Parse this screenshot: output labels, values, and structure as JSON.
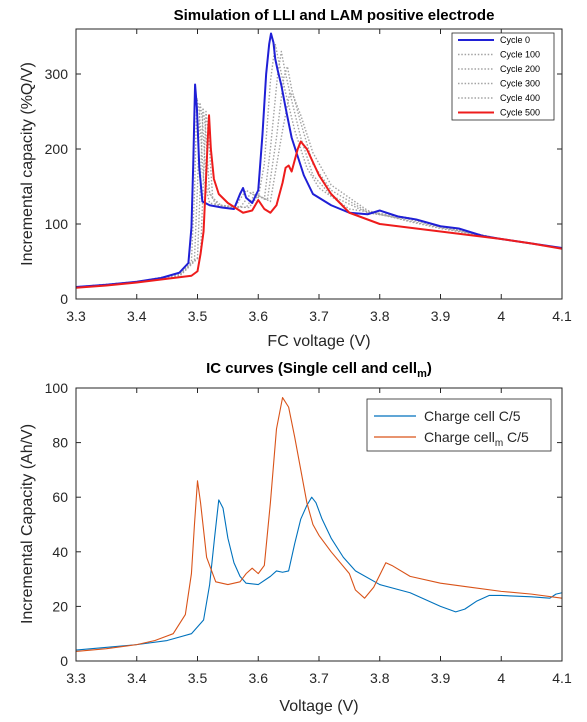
{
  "chart_data": [
    {
      "type": "line",
      "title": "Simulation of LLI and LAM positive electrode",
      "xlabel": "FC voltage (V)",
      "ylabel": "Incremental capacity (%Q/V)",
      "xlim": [
        3.3,
        4.1
      ],
      "ylim": [
        0,
        360
      ],
      "x_ticks": [
        "3.3",
        "3.4",
        "3.5",
        "3.6",
        "3.7",
        "3.8",
        "3.9",
        "4",
        "4.1"
      ],
      "y_ticks": [
        "0",
        "100",
        "200",
        "300"
      ],
      "legend_position": "top-right",
      "series": [
        {
          "name": "Cycle 0",
          "color": "#1f1fd6",
          "style": "solid",
          "points": [
            [
              3.3,
              16
            ],
            [
              3.35,
              19
            ],
            [
              3.4,
              23
            ],
            [
              3.44,
              28
            ],
            [
              3.47,
              35
            ],
            [
              3.485,
              48
            ],
            [
              3.49,
              95
            ],
            [
              3.493,
              180
            ],
            [
              3.496,
              286
            ],
            [
              3.499,
              255
            ],
            [
              3.503,
              175
            ],
            [
              3.508,
              130
            ],
            [
              3.52,
              125
            ],
            [
              3.54,
              122
            ],
            [
              3.56,
              120
            ],
            [
              3.57,
              140
            ],
            [
              3.575,
              148
            ],
            [
              3.58,
              135
            ],
            [
              3.59,
              128
            ],
            [
              3.6,
              145
            ],
            [
              3.607,
              220
            ],
            [
              3.613,
              300
            ],
            [
              3.618,
              340
            ],
            [
              3.621,
              354
            ],
            [
              3.625,
              342
            ],
            [
              3.628,
              320
            ],
            [
              3.632,
              305
            ],
            [
              3.638,
              285
            ],
            [
              3.645,
              255
            ],
            [
              3.655,
              215
            ],
            [
              3.665,
              190
            ],
            [
              3.675,
              165
            ],
            [
              3.69,
              140
            ],
            [
              3.72,
              125
            ],
            [
              3.75,
              115
            ],
            [
              3.78,
              113
            ],
            [
              3.8,
              118
            ],
            [
              3.83,
              110
            ],
            [
              3.86,
              106
            ],
            [
              3.9,
              97
            ],
            [
              3.93,
              94
            ],
            [
              3.97,
              84
            ],
            [
              4.0,
              80
            ],
            [
              4.05,
              74
            ],
            [
              4.1,
              68
            ]
          ]
        },
        {
          "name": "Cycle 100",
          "color": "#a3a3a3",
          "style": "dotted",
          "points": [
            [
              3.3,
              16
            ],
            [
              3.4,
              23
            ],
            [
              3.47,
              33
            ],
            [
              3.49,
              50
            ],
            [
              3.495,
              140
            ],
            [
              3.499,
              268
            ],
            [
              3.503,
              250
            ],
            [
              3.51,
              160
            ],
            [
              3.52,
              128
            ],
            [
              3.56,
              121
            ],
            [
              3.58,
              145
            ],
            [
              3.6,
              135
            ],
            [
              3.61,
              180
            ],
            [
              3.62,
              290
            ],
            [
              3.628,
              340
            ],
            [
              3.635,
              312
            ],
            [
              3.645,
              275
            ],
            [
              3.66,
              225
            ],
            [
              3.68,
              175
            ],
            [
              3.7,
              148
            ],
            [
              3.75,
              120
            ],
            [
              3.8,
              114
            ],
            [
              3.85,
              108
            ],
            [
              3.9,
              97
            ],
            [
              4.0,
              80
            ],
            [
              4.1,
              68
            ]
          ]
        },
        {
          "name": "Cycle 200",
          "color": "#a3a3a3",
          "style": "dotted",
          "points": [
            [
              3.3,
              16
            ],
            [
              3.4,
              23
            ],
            [
              3.47,
              32
            ],
            [
              3.495,
              52
            ],
            [
              3.5,
              150
            ],
            [
              3.504,
              262
            ],
            [
              3.508,
              240
            ],
            [
              3.515,
              150
            ],
            [
              3.53,
              126
            ],
            [
              3.57,
              122
            ],
            [
              3.59,
              143
            ],
            [
              3.61,
              133
            ],
            [
              3.62,
              200
            ],
            [
              3.632,
              300
            ],
            [
              3.638,
              330
            ],
            [
              3.645,
              300
            ],
            [
              3.655,
              265
            ],
            [
              3.67,
              215
            ],
            [
              3.69,
              165
            ],
            [
              3.72,
              138
            ],
            [
              3.78,
              115
            ],
            [
              3.85,
              106
            ],
            [
              3.9,
              96
            ],
            [
              4.0,
              80
            ],
            [
              4.1,
              68
            ]
          ]
        },
        {
          "name": "Cycle 300",
          "color": "#a3a3a3",
          "style": "dotted",
          "points": [
            [
              3.3,
              16
            ],
            [
              3.4,
              22
            ],
            [
              3.47,
              31
            ],
            [
              3.5,
              55
            ],
            [
              3.505,
              160
            ],
            [
              3.509,
              255
            ],
            [
              3.513,
              230
            ],
            [
              3.52,
              140
            ],
            [
              3.535,
              125
            ],
            [
              3.58,
              122
            ],
            [
              3.595,
              140
            ],
            [
              3.615,
              132
            ],
            [
              3.63,
              215
            ],
            [
              3.642,
              295
            ],
            [
              3.648,
              310
            ],
            [
              3.655,
              280
            ],
            [
              3.67,
              235
            ],
            [
              3.69,
              180
            ],
            [
              3.72,
              145
            ],
            [
              3.78,
              116
            ],
            [
              3.85,
              104
            ],
            [
              3.9,
              95
            ],
            [
              4.0,
              80
            ],
            [
              4.1,
              68
            ]
          ]
        },
        {
          "name": "Cycle 400",
          "color": "#a3a3a3",
          "style": "dotted",
          "points": [
            [
              3.3,
              16
            ],
            [
              3.4,
              22
            ],
            [
              3.47,
              30
            ],
            [
              3.505,
              58
            ],
            [
              3.51,
              165
            ],
            [
              3.514,
              250
            ],
            [
              3.518,
              220
            ],
            [
              3.525,
              135
            ],
            [
              3.54,
              124
            ],
            [
              3.585,
              122
            ],
            [
              3.6,
              138
            ],
            [
              3.62,
              130
            ],
            [
              3.64,
              225
            ],
            [
              3.652,
              275
            ],
            [
              3.658,
              270
            ],
            [
              3.67,
              245
            ],
            [
              3.69,
              195
            ],
            [
              3.72,
              152
            ],
            [
              3.78,
              118
            ],
            [
              3.85,
              103
            ],
            [
              3.9,
              94
            ],
            [
              4.0,
              80
            ],
            [
              4.1,
              68
            ]
          ]
        },
        {
          "name": "Cycle 500",
          "color": "#ee1c1c",
          "style": "solid",
          "points": [
            [
              3.3,
              15
            ],
            [
              3.35,
              18
            ],
            [
              3.4,
              22
            ],
            [
              3.45,
              27
            ],
            [
              3.49,
              31
            ],
            [
              3.5,
              37
            ],
            [
              3.505,
              60
            ],
            [
              3.51,
              90
            ],
            [
              3.514,
              160
            ],
            [
              3.517,
              215
            ],
            [
              3.519,
              245
            ],
            [
              3.522,
              200
            ],
            [
              3.527,
              160
            ],
            [
              3.535,
              140
            ],
            [
              3.55,
              128
            ],
            [
              3.575,
              115
            ],
            [
              3.59,
              118
            ],
            [
              3.6,
              132
            ],
            [
              3.61,
              120
            ],
            [
              3.62,
              115
            ],
            [
              3.63,
              125
            ],
            [
              3.64,
              155
            ],
            [
              3.645,
              175
            ],
            [
              3.65,
              178
            ],
            [
              3.655,
              170
            ],
            [
              3.665,
              200
            ],
            [
              3.67,
              210
            ],
            [
              3.68,
              200
            ],
            [
              3.7,
              165
            ],
            [
              3.72,
              140
            ],
            [
              3.75,
              115
            ],
            [
              3.8,
              100
            ],
            [
              3.85,
              95
            ],
            [
              3.9,
              90
            ],
            [
              3.95,
              85
            ],
            [
              4.0,
              80
            ],
            [
              4.05,
              74
            ],
            [
              4.1,
              67
            ]
          ]
        }
      ]
    },
    {
      "type": "line",
      "title": "IC curves (Single cell and cell",
      "title_subscript": "m",
      "title_close": ")",
      "xlabel": "Voltage (V)",
      "ylabel": "Incremental Capacity (Ah/V)",
      "xlim": [
        3.3,
        4.1
      ],
      "ylim": [
        0,
        100
      ],
      "x_ticks": [
        "3.3",
        "3.4",
        "3.5",
        "3.6",
        "3.7",
        "3.8",
        "3.9",
        "4",
        "4.1"
      ],
      "y_ticks": [
        "0",
        "20",
        "40",
        "60",
        "80",
        "100"
      ],
      "legend_position": "top-right",
      "series": [
        {
          "name": "Charge cell C/5",
          "legend_main": "Charge cell C/5",
          "color": "#0072bd",
          "style": "solid",
          "points": [
            [
              3.3,
              4
            ],
            [
              3.4,
              6
            ],
            [
              3.45,
              7.5
            ],
            [
              3.49,
              10
            ],
            [
              3.51,
              15
            ],
            [
              3.52,
              28
            ],
            [
              3.528,
              45
            ],
            [
              3.535,
              59
            ],
            [
              3.542,
              56
            ],
            [
              3.55,
              45
            ],
            [
              3.56,
              36
            ],
            [
              3.57,
              31
            ],
            [
              3.58,
              28.5
            ],
            [
              3.6,
              28
            ],
            [
              3.62,
              31
            ],
            [
              3.63,
              33
            ],
            [
              3.64,
              32.5
            ],
            [
              3.65,
              33
            ],
            [
              3.66,
              43
            ],
            [
              3.67,
              52
            ],
            [
              3.68,
              57
            ],
            [
              3.688,
              60
            ],
            [
              3.695,
              58
            ],
            [
              3.705,
              52
            ],
            [
              3.72,
              45
            ],
            [
              3.74,
              38
            ],
            [
              3.76,
              33
            ],
            [
              3.8,
              28
            ],
            [
              3.85,
              25
            ],
            [
              3.9,
              20
            ],
            [
              3.925,
              18
            ],
            [
              3.94,
              19
            ],
            [
              3.96,
              22
            ],
            [
              3.98,
              24
            ],
            [
              4.0,
              24
            ],
            [
              4.05,
              23.5
            ],
            [
              4.08,
              23
            ],
            [
              4.09,
              24.5
            ],
            [
              4.1,
              25
            ]
          ]
        },
        {
          "name": "Charge cell_m C/5",
          "legend_main": "Charge cell",
          "legend_sub": "m",
          "legend_tail": " C/5",
          "color": "#d95319",
          "style": "solid",
          "points": [
            [
              3.3,
              3.5
            ],
            [
              3.35,
              4.5
            ],
            [
              3.4,
              6
            ],
            [
              3.43,
              7.5
            ],
            [
              3.46,
              10
            ],
            [
              3.48,
              17
            ],
            [
              3.49,
              32
            ],
            [
              3.495,
              50
            ],
            [
              3.5,
              66
            ],
            [
              3.505,
              58
            ],
            [
              3.515,
              38
            ],
            [
              3.53,
              29
            ],
            [
              3.55,
              28
            ],
            [
              3.57,
              29
            ],
            [
              3.58,
              32
            ],
            [
              3.59,
              34
            ],
            [
              3.6,
              32
            ],
            [
              3.61,
              35
            ],
            [
              3.62,
              58
            ],
            [
              3.63,
              85
            ],
            [
              3.64,
              96.5
            ],
            [
              3.65,
              93
            ],
            [
              3.66,
              82
            ],
            [
              3.67,
              70
            ],
            [
              3.68,
              58
            ],
            [
              3.69,
              50
            ],
            [
              3.7,
              46
            ],
            [
              3.72,
              40
            ],
            [
              3.75,
              32
            ],
            [
              3.76,
              26
            ],
            [
              3.775,
              23
            ],
            [
              3.79,
              27
            ],
            [
              3.81,
              36
            ],
            [
              3.82,
              35
            ],
            [
              3.85,
              31
            ],
            [
              3.9,
              28.5
            ],
            [
              3.95,
              27
            ],
            [
              4.0,
              25.5
            ],
            [
              4.05,
              24.5
            ],
            [
              4.1,
              23
            ]
          ]
        }
      ]
    }
  ]
}
